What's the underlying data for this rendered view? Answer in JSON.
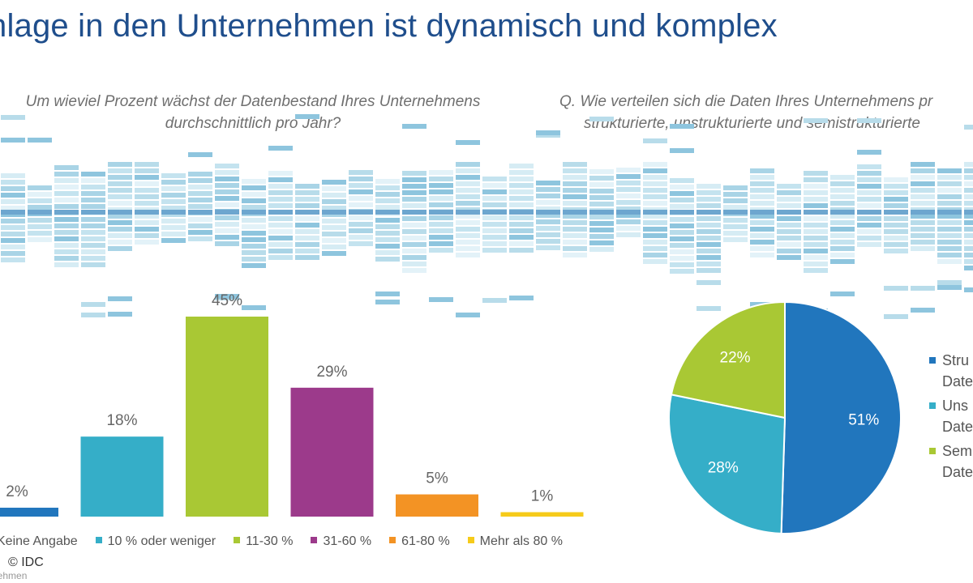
{
  "title": "nlage in den Unternehmen ist dynamisch und komplex",
  "question_left": {
    "line1": "Um wieviel Prozent wächst der Datenbestand Ihres Unternehmens",
    "line2": "durchschnittlich pro Jahr?"
  },
  "question_right": {
    "line1": "Q. Wie verteilen sich die Daten Ihres Unternehmens pr",
    "line2": "strukturierte, unstrukturierte und semistrukturierte"
  },
  "colors": {
    "blue": "#2176bd",
    "cyan": "#35aec8",
    "green": "#a9c834",
    "purple": "#9c3a8b",
    "orange": "#f39324",
    "yellow": "#f6cb1a"
  },
  "chart_data": [
    {
      "type": "bar",
      "title": "Um wieviel Prozent wächst der Datenbestand Ihres Unternehmens durchschnittlich pro Jahr?",
      "categories": [
        "Keine Angabe",
        "10 % oder weniger",
        "11-30 %",
        "31-60 %",
        "61-80 %",
        "Mehr als 80 %"
      ],
      "values": [
        2,
        18,
        45,
        29,
        5,
        1
      ],
      "labels": [
        "2%",
        "18%",
        "45%",
        "29%",
        "5%",
        "1%"
      ],
      "colors": [
        "#2176bd",
        "#35aec8",
        "#a9c834",
        "#9c3a8b",
        "#f39324",
        "#f6cb1a"
      ],
      "ylim": [
        0,
        45
      ]
    },
    {
      "type": "pie",
      "title": "Wie verteilen sich die Daten Ihres Unternehmens",
      "categories": [
        "Strukturierte Daten",
        "Unstrukturierte Daten",
        "Semistrukturierte Daten"
      ],
      "values": [
        51,
        28,
        22
      ],
      "labels": [
        "51%",
        "28%",
        "22%"
      ],
      "colors": [
        "#2176bd",
        "#35aec8",
        "#a9c834"
      ]
    }
  ],
  "pie_legend": [
    {
      "line1": "Stru",
      "line2": "Date"
    },
    {
      "line1": "Uns",
      "line2": "Date"
    },
    {
      "line1": "Sem",
      "line2": "Date"
    }
  ],
  "copyright": "© IDC",
  "footnote": "nehmen"
}
